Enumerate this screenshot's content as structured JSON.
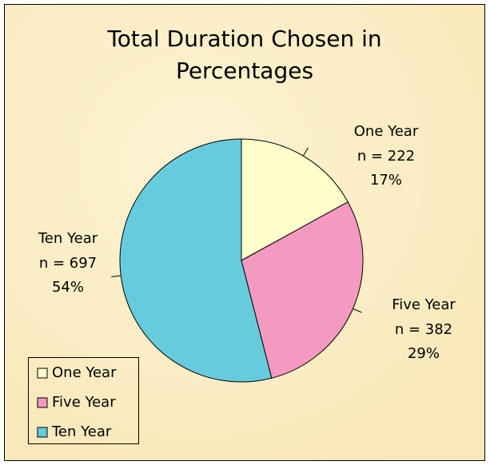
{
  "chart_data": {
    "type": "pie",
    "title_lines": [
      "Total Duration Chosen in",
      "Percentages"
    ],
    "categories": [
      "One Year",
      "Five Year",
      "Ten Year"
    ],
    "values": [
      17,
      29,
      54
    ],
    "value_labels": [
      "17%",
      "29%",
      "54%"
    ],
    "count_labels": [
      "n = 222",
      "n = 382",
      "n = 697"
    ],
    "colors": [
      "#ffffcc",
      "#f49ac1",
      "#66ccdd"
    ],
    "legend": "lower left"
  }
}
